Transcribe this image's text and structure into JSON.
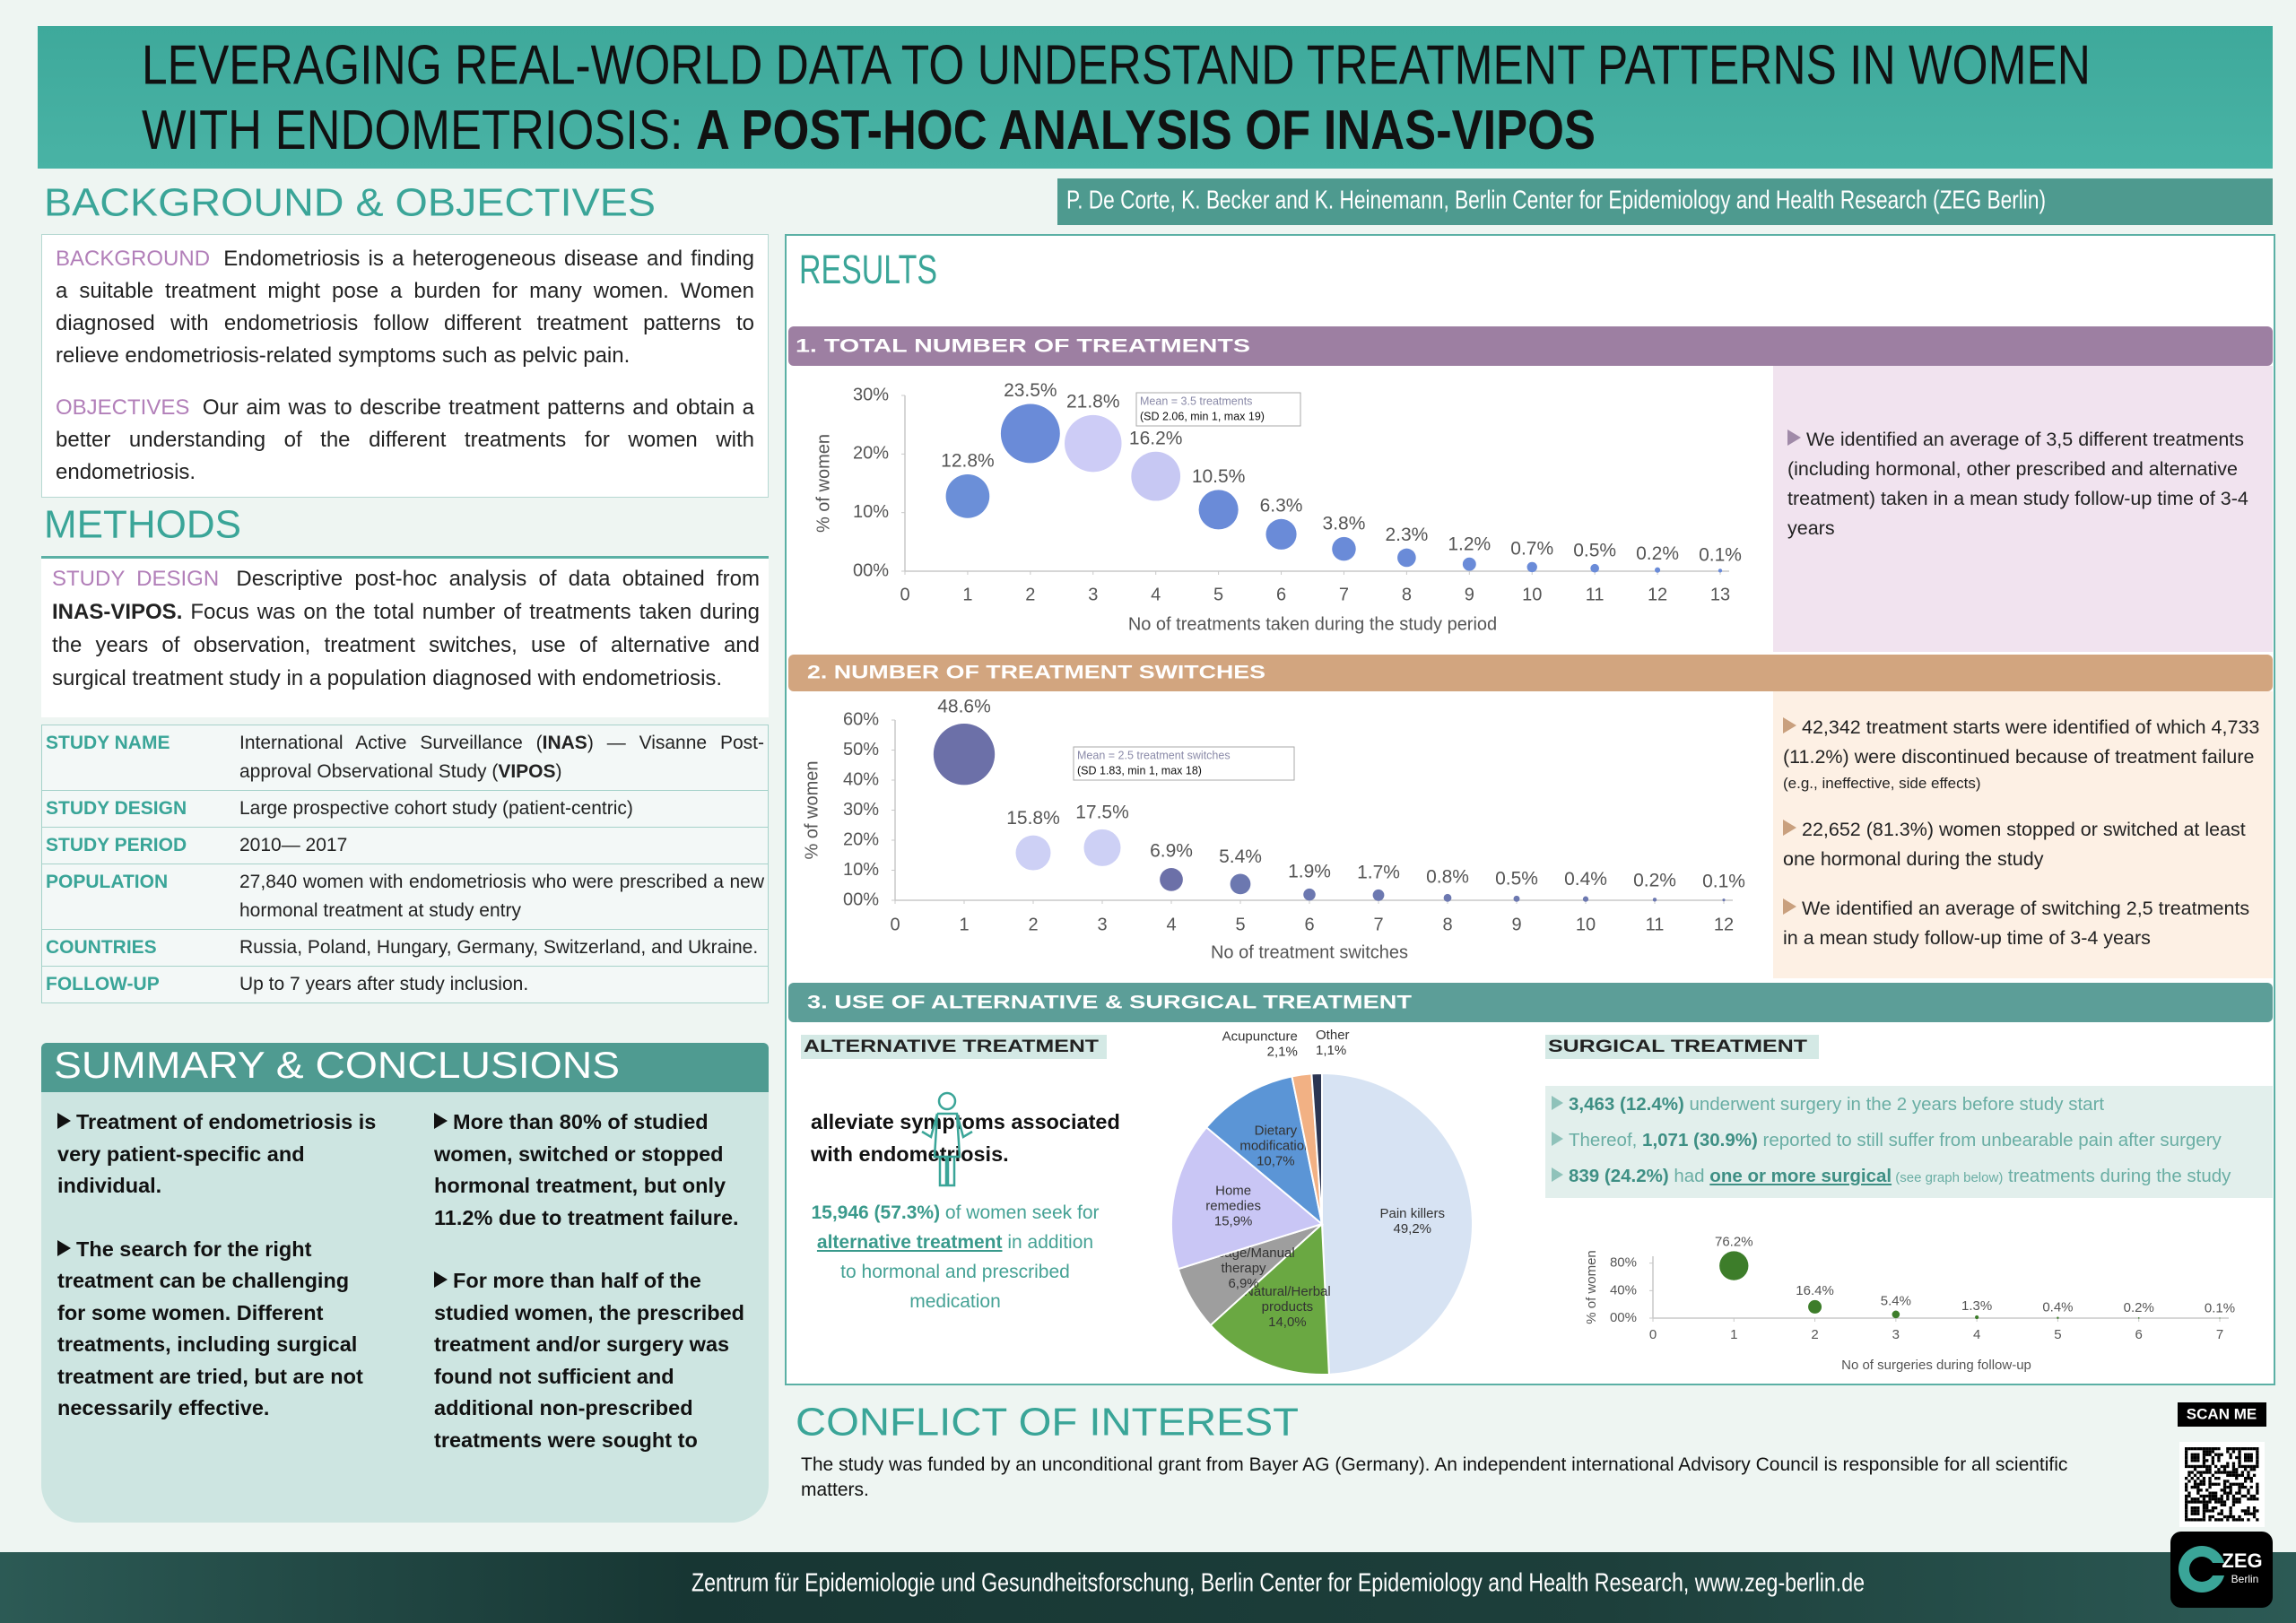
{
  "header": {
    "title_line1": "LEVERAGING REAL-WORLD DATA TO UNDERSTAND TREATMENT PATTERNS IN WOMEN",
    "title_line2": "WITH ENDOMETRIOSIS: ",
    "title_line2_bold": "A POST-HOC ANALYSIS OF INAS-VIPOS",
    "authors": "P. De Corte, K. Becker and K. Heinemann, Berlin Center for Epidemiology and Health Research (ZEG Berlin)"
  },
  "background": {
    "heading": "BACKGROUND & OBJECTIVES",
    "background_label": "BACKGROUND",
    "background_text": "Endometriosis is a heterogeneous disease and finding a suitable treatment might pose a burden for many women. Women diagnosed with endometriosis follow different treatment patterns to relieve endometriosis-related symptoms such as pelvic pain.",
    "objectives_label": "OBJECTIVES",
    "objectives_text": "Our aim was to describe treatment patterns and obtain a better understanding of the different treatments for women with endometriosis."
  },
  "methods": {
    "heading": "METHODS",
    "design_label": "STUDY DESIGN",
    "design_text": "Descriptive post-hoc analysis of data obtained from",
    "design_bold": "INAS-VIPOS.",
    "design_text2": "Focus was on the total number of treatments taken during the years of observation, treatment switches, use of alternative and surgical treatment study in a population diagnosed with endometriosis.",
    "table": [
      {
        "label": "STUDY NAME",
        "value": [
          "International Active Surveillance (",
          "INAS",
          ") — Visanne Post-approval Observational Study (",
          "VIPOS",
          ")"
        ]
      },
      {
        "label": "STUDY DESIGN",
        "value": [
          "Large prospective cohort study (patient-centric)"
        ]
      },
      {
        "label": "STUDY PERIOD",
        "value": [
          "2010— 2017"
        ]
      },
      {
        "label": "POPULATION",
        "value": [
          "27,840 women with endometriosis who were prescribed a new hormonal treatment at study entry"
        ]
      },
      {
        "label": "COUNTRIES",
        "value": [
          "Russia, Poland, Hungary, Germany, Switzerland, and Ukraine."
        ]
      },
      {
        "label": "FOLLOW-UP",
        "value": [
          "Up to 7 years after study inclusion."
        ]
      }
    ]
  },
  "summary": {
    "heading": "SUMMARY & CONCLUSIONS",
    "items": [
      "Treatment of endometriosis is very patient-specific and individual.",
      "The search for the right treatment can be challenging for some women. Different treatments, including surgical treatment are tried, but are not necessarily effective.",
      "More than 80% of studied women, switched or stopped hormonal treatment, but only 11.2% due to treatment failure.",
      "For more than half of the studied women, the prescribed treatment and/or surgery was found not sufficient and additional non-prescribed treatments were sought to alleviate symptoms associated with endometriosis."
    ]
  },
  "results": {
    "heading": "RESULTS",
    "s1": {
      "title": "1. TOTAL NUMBER OF TREATMENTS",
      "chart": {
        "type": "bubble",
        "x": [
          1,
          2,
          3,
          4,
          5,
          6,
          7,
          8,
          9,
          10,
          11,
          12,
          13
        ],
        "values": [
          12.8,
          23.5,
          21.8,
          16.2,
          10.5,
          6.3,
          3.8,
          2.3,
          1.2,
          0.7,
          0.5,
          0.2,
          0.1
        ],
        "value_labels": [
          "12.8%",
          "23.5%",
          "21.8%",
          "16.2%",
          "10.5%",
          "6.3%",
          "3.8%",
          "2.3%",
          "1.2%",
          "0.7%",
          "0.5%",
          "0.2%",
          "0.1%"
        ],
        "colors": [
          "#6b8fd8",
          "#6a8bd8",
          "#cdccf6",
          "#c7c8f3",
          "#6a8bd8",
          "#6a8bd8",
          "#6a8bd8",
          "#6a8bd8",
          "#6a8bd8",
          "#6a8bd8",
          "#6a8bd8",
          "#6a8bd8",
          "#6a8bd8"
        ],
        "xlim": [
          0,
          13
        ],
        "xticks": [
          0,
          1,
          2,
          3,
          4,
          5,
          6,
          7,
          8,
          9,
          10,
          11,
          12,
          13
        ],
        "ylim": [
          0,
          30
        ],
        "yticks": [
          {
            "value": 0,
            "label": "00%"
          },
          {
            "value": 10,
            "label": "10%"
          },
          {
            "value": 20,
            "label": "20%"
          },
          {
            "value": 30,
            "label": "30%"
          }
        ],
        "xlabel": "No of treatments taken during the study period",
        "ylabel": "% of women",
        "annotation": [
          "Mean = 3.5 treatments",
          "(SD 2.06, min 1, max 19)"
        ]
      },
      "notes": [
        [
          "We identified an average of 3,5 different treatments (including hormonal, other prescribed and alternative treatment) taken in a mean study follow-up time of 3-4 years"
        ]
      ]
    },
    "s2": {
      "title": "2. NUMBER OF TREATMENT SWITCHES",
      "chart": {
        "type": "bubble",
        "x": [
          1,
          2,
          3,
          4,
          5,
          6,
          7,
          8,
          9,
          10,
          11,
          12
        ],
        "values": [
          48.6,
          15.8,
          17.5,
          6.9,
          5.4,
          1.9,
          1.7,
          0.8,
          0.5,
          0.4,
          0.2,
          0.1
        ],
        "value_labels": [
          "48.6%",
          "15.8%",
          "17.5%",
          "6.9%",
          "5.4%",
          "1.9%",
          "1.7%",
          "0.8%",
          "0.5%",
          "0.4%",
          "0.2%",
          "0.1%"
        ],
        "colors": [
          "#6c70a8",
          "#cdd0f5",
          "#cdd0f5",
          "#6c70a8",
          "#6c78b0",
          "#6c78b0",
          "#6c78b0",
          "#6c78b0",
          "#6c78b0",
          "#6c78b0",
          "#6c78b0",
          "#6c78b0"
        ],
        "xlim": [
          0,
          12
        ],
        "xticks": [
          0,
          1,
          2,
          3,
          4,
          5,
          6,
          7,
          8,
          9,
          10,
          11,
          12
        ],
        "ylim": [
          0,
          60
        ],
        "yticks": [
          {
            "value": 0,
            "label": "00%"
          },
          {
            "value": 10,
            "label": "10%"
          },
          {
            "value": 20,
            "label": "20%"
          },
          {
            "value": 30,
            "label": "30%"
          },
          {
            "value": 40,
            "label": "40%"
          },
          {
            "value": 50,
            "label": "50%"
          },
          {
            "value": 60,
            "label": "60%"
          }
        ],
        "xlabel": "No of treatment switches",
        "ylabel": "% of women",
        "annotation": [
          "Mean = 2.5 treatment switches",
          "(SD 1.83, min 1, max 18)"
        ]
      },
      "notes": [
        [
          "42,342 treatment starts were identified of which 4,733 (11.2%) were discontinued because of treatment failure",
          "(e.g., ineffective, side effects)"
        ],
        [
          "22,652 (81.3%) women stopped or switched at least one hormonal during the study"
        ],
        [
          "We identified an average of switching 2,5 treatments in a mean study follow-up time of 3-4 years"
        ]
      ]
    },
    "s3": {
      "title": "3. USE OF ALTERNATIVE & SURGICAL TREATMENT",
      "alternative": {
        "heading": "ALTERNATIVE TREATMENT",
        "text": [
          {
            "text": "15,946 (57.3%)",
            "style": "bold"
          },
          {
            "text": " of women seek for "
          },
          {
            "text": "alternative treatment",
            "style": "bold-underline"
          },
          {
            "text": " in addition to hormonal and prescribed medication"
          }
        ],
        "pie": {
          "type": "pie",
          "categories": [
            [
              "Pain killers"
            ],
            [
              "Natural/Herbal",
              "products"
            ],
            [
              "Massage/Manual",
              "therapy"
            ],
            [
              "Home",
              "remedies"
            ],
            [
              "Dietary",
              "modification"
            ],
            [
              "Acupuncture"
            ],
            [
              "Other"
            ]
          ],
          "values": [
            49.2,
            14.0,
            6.9,
            15.9,
            10.7,
            2.1,
            1.1
          ],
          "value_labels": [
            "49,2%",
            "14,0%",
            "6,9%",
            "15,9%",
            "10,7%",
            "2,1%",
            "1,1%"
          ],
          "colors": [
            "#d7e3f3",
            "#6aa842",
            "#9e9e9e",
            "#c9c6f5",
            "#5b95d6",
            "#f2b184",
            "#2b3552"
          ]
        }
      },
      "surgical": {
        "heading": "SURGICAL TREATMENT",
        "bullets": [
          [
            {
              "text": "3,463 (12.4%)",
              "style": "bold"
            },
            {
              "text": " underwent surgery in the 2 years before study start"
            }
          ],
          [
            {
              "text": "Thereof, "
            },
            {
              "text": "1,071 (30.9%)",
              "style": "bold"
            },
            {
              "text": " reported to still suffer from unbearable pain after surgery"
            }
          ],
          [
            {
              "text": "839 (24.2%)",
              "style": "bold"
            },
            {
              "text": " had "
            },
            {
              "text": "one or more surgical",
              "style": "bold-underline"
            },
            {
              "text": " (see graph below)",
              "style": "small"
            },
            {
              "text": " treatments during the study"
            }
          ]
        ],
        "chart": {
          "type": "bubble",
          "x": [
            1,
            2,
            3,
            4,
            5,
            6,
            7
          ],
          "values": [
            76.2,
            16.4,
            5.4,
            1.3,
            0.4,
            0.2,
            0.1
          ],
          "value_labels": [
            "76.2%",
            "16.4%",
            "5.4%",
            "1.3%",
            "0.4%",
            "0.2%",
            "0.1%"
          ],
          "color": "#3d7d2a",
          "xlim": [
            0,
            7
          ],
          "xticks": [
            0,
            1,
            2,
            3,
            4,
            5,
            6,
            7
          ],
          "ylim": [
            0,
            90
          ],
          "yticks": [
            {
              "value": 0,
              "label": "00%"
            },
            {
              "value": 40,
              "label": "40%"
            },
            {
              "value": 80,
              "label": "80%"
            }
          ],
          "xlabel": "No of surgeries during follow-up",
          "ylabel": "% of women"
        }
      }
    }
  },
  "conflict": {
    "heading": "CONFLICT OF INTEREST",
    "text": "The study was funded by an unconditional grant from Bayer AG (Germany). An independent international Advisory Council is responsible for all scientific matters."
  },
  "qr": {
    "label": "SCAN ME"
  },
  "logo": {
    "name": "ZEG",
    "city": "Berlin"
  },
  "footer": {
    "text": "Zentrum für Epidemiologie und Gesundheitsforschung, Berlin Center for Epidemiology and Health Research, www.zeg-berlin.de"
  }
}
